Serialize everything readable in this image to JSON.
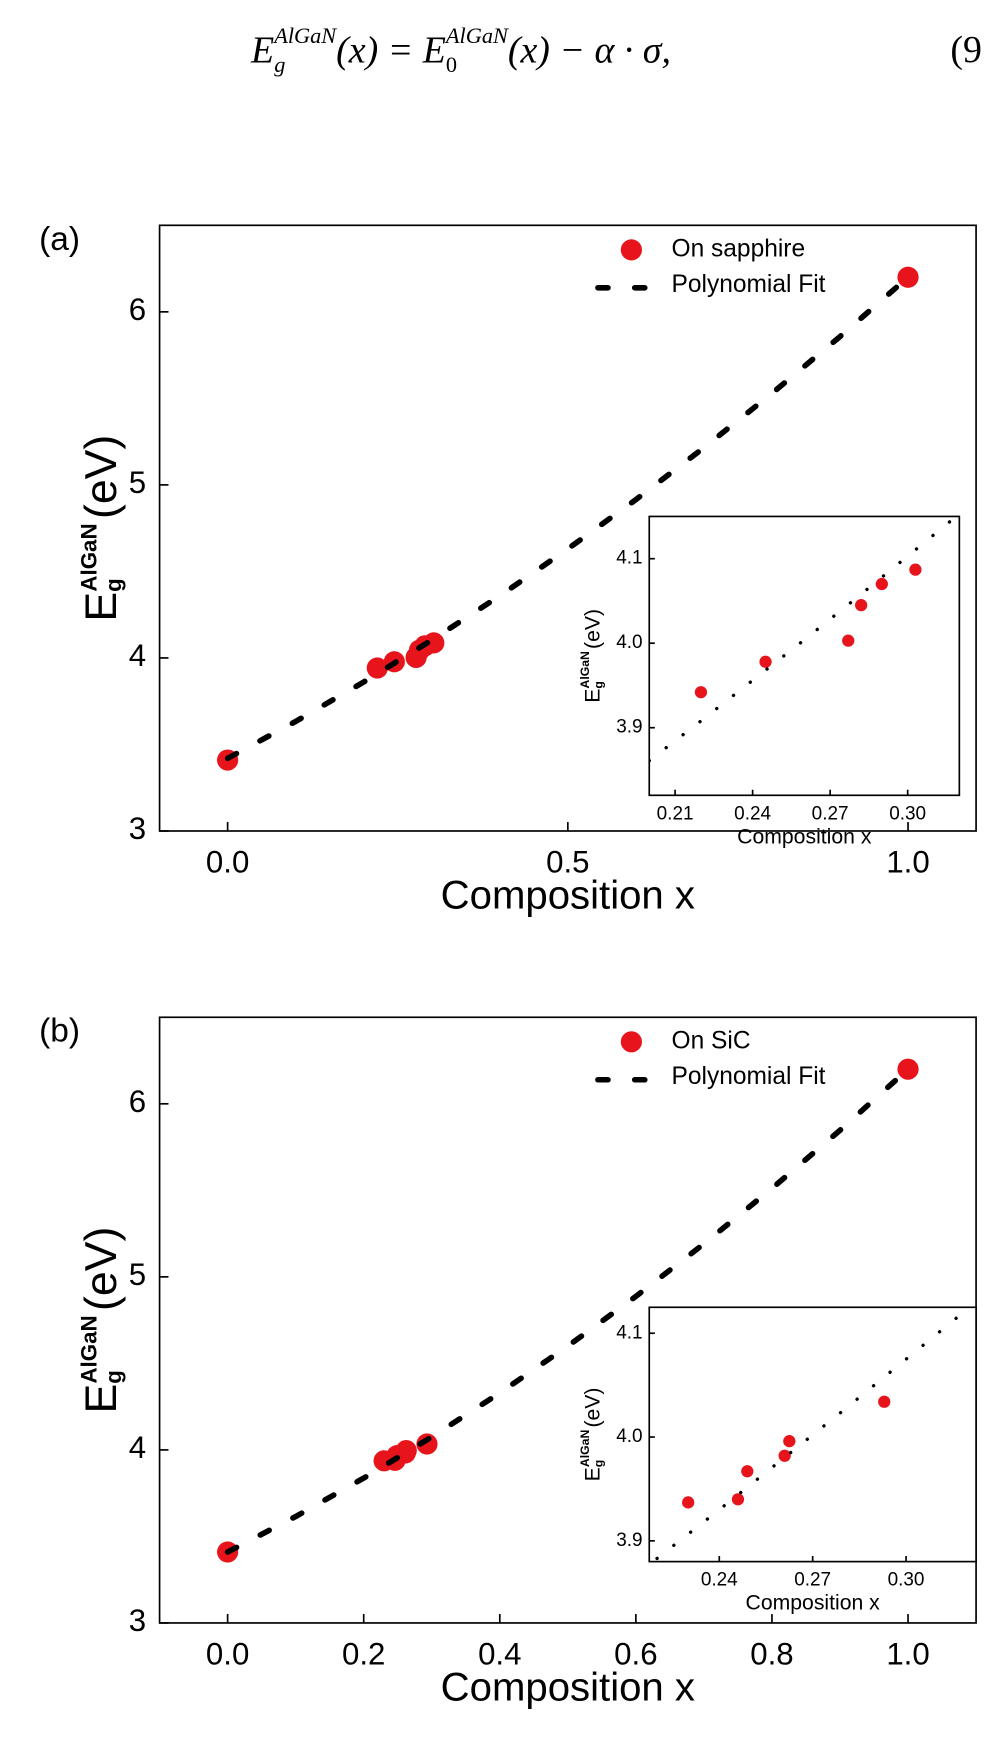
{
  "equation": {
    "e1": "E",
    "sub1": "g",
    "sup1": "AlGaN",
    "mid": "(x) = ",
    "e2": "E",
    "sub2": "0",
    "sup2": "AlGaN",
    "rest": "(x) − α · σ,",
    "number": "(9"
  },
  "chart_data": [
    {
      "type": "scatter",
      "panel_label": "(a)",
      "x_label": "Composition x",
      "y_label": {
        "main": "E",
        "sub": "g",
        "sup": "AlGaN",
        "unit": "(eV)"
      },
      "xlim": [
        -0.1,
        1.1
      ],
      "ylim": [
        3,
        6.5
      ],
      "xticks": [
        {
          "value": 0,
          "label": "0.0"
        },
        0.5,
        {
          "value": 1,
          "label": "1.0"
        }
      ],
      "yticks": [
        3,
        4,
        5,
        6
      ],
      "legend": "upper right",
      "series": [
        {
          "name": "On sapphire",
          "color": "#e8141b",
          "x": [
            0,
            0.22,
            0.245,
            0.277,
            0.282,
            0.29,
            0.303,
            1.0
          ],
          "values": [
            3.41,
            3.942,
            3.978,
            4.003,
            4.045,
            4.07,
            4.087,
            6.2
          ]
        },
        {
          "name": "Polynomial Fit",
          "color": "#000000",
          "style": "dash",
          "x": [
            0,
            0.1,
            0.2,
            0.3,
            0.4,
            0.5,
            0.6,
            0.7,
            0.8,
            0.9,
            1.0
          ],
          "values": [
            3.42,
            3.633,
            3.861,
            4.103,
            4.359,
            4.63,
            4.915,
            5.215,
            5.529,
            5.857,
            6.2
          ]
        }
      ],
      "inset": {
        "x_label": "Composition x",
        "y_label": {
          "main": "E",
          "sub": "g",
          "sup": "AlGaN",
          "unit": "(eV)"
        },
        "xlim": [
          0.2,
          0.32
        ],
        "ylim": [
          3.82,
          4.15
        ],
        "xticks": [
          0.21,
          0.24,
          0.27,
          {
            "value": 0.3,
            "label": "0.30"
          }
        ],
        "yticks": [
          3.9,
          {
            "value": 4,
            "label": "4.0"
          },
          4.1
        ],
        "series": [
          {
            "color": "#e8141b",
            "x": [
              0.22,
              0.245,
              0.277,
              0.282,
              0.29,
              0.303
            ],
            "values": [
              3.942,
              3.978,
              4.003,
              4.045,
              4.07,
              4.087
            ]
          },
          {
            "color": "#000000",
            "style": "dot",
            "x": [
              0.2,
              0.22,
              0.24,
              0.26,
              0.28,
              0.3,
              0.32
            ],
            "values": [
              3.861,
              3.908,
              3.956,
              4.004,
              4.053,
              4.103,
              4.153
            ]
          }
        ]
      }
    },
    {
      "type": "scatter",
      "panel_label": "(b)",
      "x_label": "Composition x",
      "y_label": {
        "main": "E",
        "sub": "g",
        "sup": "AlGaN",
        "unit": "(eV)"
      },
      "xlim": [
        -0.1,
        1.1
      ],
      "ylim": [
        3,
        6.5
      ],
      "xticks": [
        {
          "value": 0,
          "label": "0.0"
        },
        0.2,
        0.4,
        0.6,
        0.8,
        {
          "value": 1,
          "label": "1.0"
        }
      ],
      "yticks": [
        3,
        4,
        5,
        6
      ],
      "legend": "upper right",
      "series": [
        {
          "name": "On SiC",
          "color": "#e8141b",
          "x": [
            0,
            0.23,
            0.246,
            0.249,
            0.261,
            0.2625,
            0.293,
            1.0
          ],
          "values": [
            3.41,
            3.937,
            3.94,
            3.967,
            3.982,
            3.996,
            4.034,
            6.2
          ]
        },
        {
          "name": "Polynomial Fit",
          "color": "#000000",
          "style": "dash",
          "x": [
            0,
            0.1,
            0.2,
            0.3,
            0.4,
            0.5,
            0.6,
            0.7,
            0.8,
            0.9,
            1.0
          ],
          "values": [
            3.41,
            3.615,
            3.837,
            4.075,
            4.329,
            4.6,
            4.887,
            5.191,
            5.511,
            5.847,
            6.2
          ]
        }
      ],
      "inset": {
        "x_label": "Composition x",
        "y_label": {
          "main": "E",
          "sub": "g",
          "sup": "AlGaN",
          "unit": "(eV)"
        },
        "xlim": [
          0.2175,
          0.3225
        ],
        "ylim": [
          3.88,
          4.125
        ],
        "xticks": [
          0.24,
          0.27,
          {
            "value": 0.3,
            "label": "0.30"
          }
        ],
        "yticks": [
          3.9,
          {
            "value": 4,
            "label": "4.0"
          },
          4.1
        ],
        "series": [
          {
            "color": "#e8141b",
            "x": [
              0.23,
              0.246,
              0.249,
              0.261,
              0.2625,
              0.293
            ],
            "values": [
              3.937,
              3.94,
              3.967,
              3.982,
              3.996,
              4.034
            ]
          },
          {
            "color": "#000000",
            "style": "dot",
            "x": [
              0.22,
              0.24,
              0.26,
              0.28,
              0.3,
              0.32
            ],
            "values": [
              3.883,
              3.93,
              3.978,
              4.026,
              4.075,
              4.124
            ]
          }
        ]
      }
    }
  ]
}
